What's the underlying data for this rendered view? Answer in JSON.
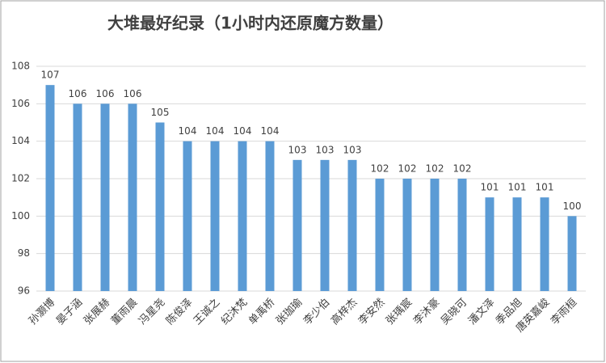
{
  "chart_data": {
    "type": "bar",
    "title": "大堆最好纪录（1小时内还原魔方数量）",
    "categories": [
      "孙灏博",
      "晏子涵",
      "张展赫",
      "董雨晨",
      "冯星尧",
      "陈俊泽",
      "王诚之",
      "纪沐梵",
      "单禹桥",
      "张珈瑜",
      "李少伯",
      "高梓杰",
      "李安然",
      "张瑀宸",
      "李沐豪",
      "吴晓可",
      "潘文泽",
      "季品旭",
      "唐英嘉峻",
      "李雨桓"
    ],
    "values": [
      107,
      106,
      106,
      106,
      105,
      104,
      104,
      104,
      104,
      103,
      103,
      103,
      102,
      102,
      102,
      102,
      101,
      101,
      101,
      100
    ],
    "color": "#5b9bd5",
    "ylim": [
      96,
      108
    ],
    "yticks": [
      96,
      98,
      100,
      102,
      104,
      106,
      108
    ],
    "grid": true
  }
}
